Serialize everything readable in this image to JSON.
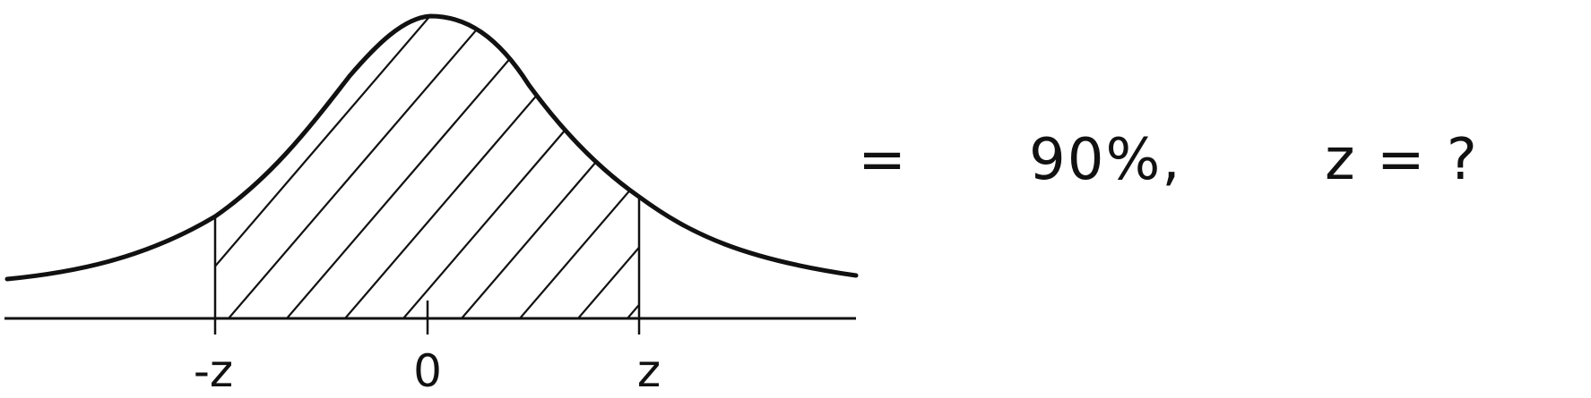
{
  "tick_labels": {
    "neg_z": "-z",
    "zero": "0",
    "pos_z": "z"
  },
  "equation": {
    "equals_sign": "=",
    "value": "90%,",
    "unknown": "z = ?"
  },
  "colors": {
    "ink": "#111111",
    "background": "#ffffff"
  }
}
